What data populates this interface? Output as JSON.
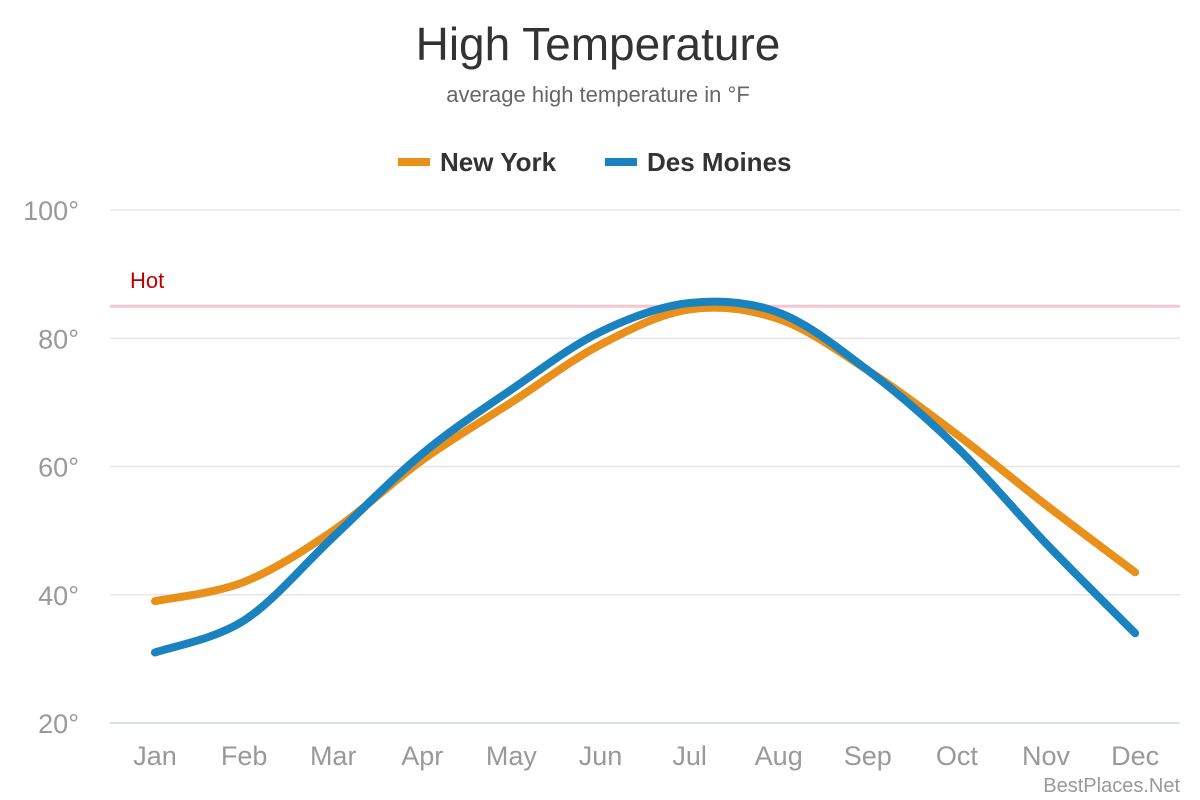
{
  "chart_data": {
    "type": "line",
    "title": "High Temperature",
    "subtitle": "average high temperature in °F",
    "categories": [
      "Jan",
      "Feb",
      "Mar",
      "Apr",
      "May",
      "Jun",
      "Jul",
      "Aug",
      "Sep",
      "Oct",
      "Nov",
      "Dec"
    ],
    "series": [
      {
        "name": "New York",
        "color": "#e8901a",
        "values": [
          39,
          42,
          50,
          61,
          70,
          79,
          84.5,
          83,
          75,
          65,
          54,
          43.5
        ]
      },
      {
        "name": "Des Moines",
        "color": "#1a83bf",
        "values": [
          31,
          36,
          49,
          62,
          72,
          81,
          85.5,
          84,
          75,
          63,
          48,
          34
        ]
      }
    ],
    "threshold": {
      "label": "Hot",
      "value": 85,
      "color": "#f7c6cf",
      "label_color": "#c00000"
    },
    "yticks": [
      20,
      40,
      60,
      80,
      100
    ],
    "ytick_labels": [
      "20°",
      "40°",
      "60°",
      "80°",
      "100°"
    ],
    "ylim": [
      20,
      100
    ],
    "grid": true,
    "legend_position": "top-center",
    "credit": "BestPlaces.Net"
  }
}
